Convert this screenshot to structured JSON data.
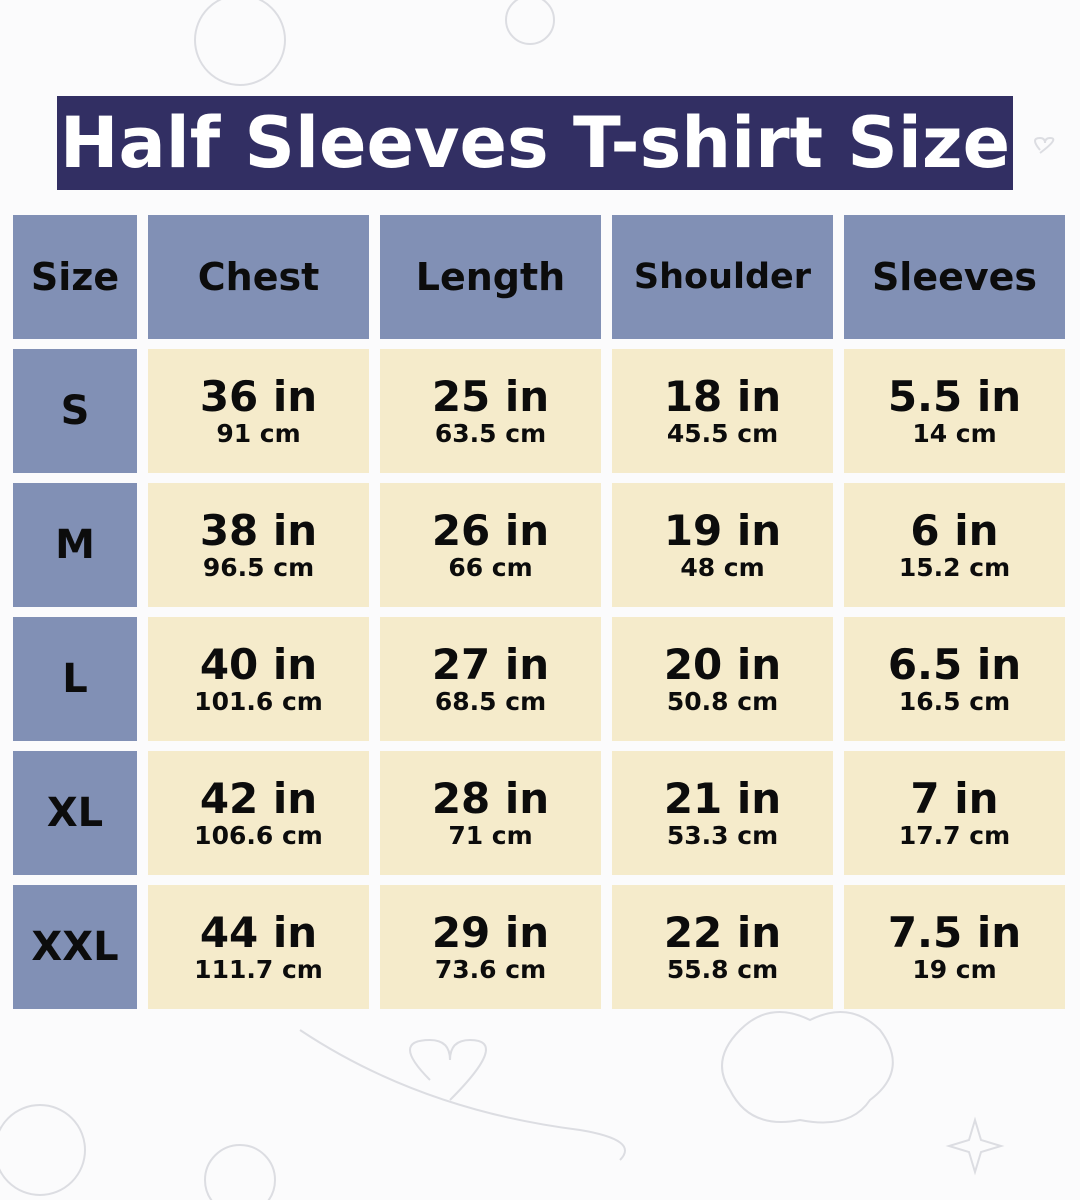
{
  "title": "Half Sleeves T-shirt Size",
  "colors": {
    "title_bg": "#322f63",
    "header_bg": "#8190b5",
    "cell_bg": "#f5ebcb"
  },
  "headers": [
    "Size",
    "Chest",
    "Length",
    "Shoulder",
    "Sleeves"
  ],
  "rows": [
    {
      "size": "S",
      "cells": [
        {
          "in": "36 in",
          "cm": "91 cm"
        },
        {
          "in": "25 in",
          "cm": "63.5 cm"
        },
        {
          "in": "18 in",
          "cm": "45.5 cm"
        },
        {
          "in": "5.5 in",
          "cm": "14 cm"
        }
      ]
    },
    {
      "size": "M",
      "cells": [
        {
          "in": "38 in",
          "cm": "96.5 cm"
        },
        {
          "in": "26 in",
          "cm": "66 cm"
        },
        {
          "in": "19 in",
          "cm": "48 cm"
        },
        {
          "in": "6 in",
          "cm": "15.2 cm"
        }
      ]
    },
    {
      "size": "L",
      "cells": [
        {
          "in": "40 in",
          "cm": "101.6 cm"
        },
        {
          "in": "27 in",
          "cm": "68.5 cm"
        },
        {
          "in": "20 in",
          "cm": "50.8 cm"
        },
        {
          "in": "6.5 in",
          "cm": "16.5 cm"
        }
      ]
    },
    {
      "size": "XL",
      "cells": [
        {
          "in": "42 in",
          "cm": "106.6 cm"
        },
        {
          "in": "28 in",
          "cm": "71 cm"
        },
        {
          "in": "21 in",
          "cm": "53.3 cm"
        },
        {
          "in": "7 in",
          "cm": "17.7 cm"
        }
      ]
    },
    {
      "size": "XXL",
      "cells": [
        {
          "in": "44 in",
          "cm": "111.7 cm"
        },
        {
          "in": "29 in",
          "cm": "73.6 cm"
        },
        {
          "in": "22 in",
          "cm": "55.8 cm"
        },
        {
          "in": "7.5 in",
          "cm": "19 cm"
        }
      ]
    }
  ]
}
